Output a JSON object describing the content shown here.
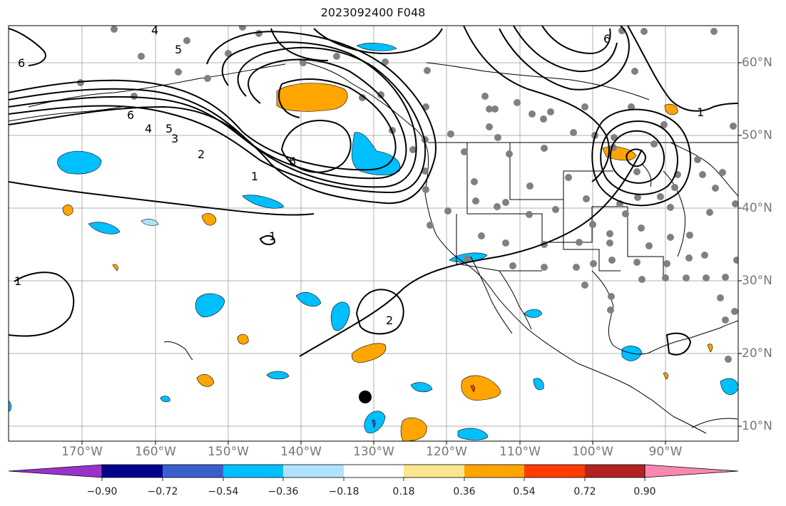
{
  "title": "2023092400 F048",
  "lon_labels": [
    "170°W",
    "160°W",
    "150°W",
    "140°W",
    "130°W",
    "120°W",
    "110°W",
    "100°W",
    "90°W"
  ],
  "lat_labels": [
    "60°N",
    "50°N",
    "40°N",
    "30°N",
    "20°N",
    "10°N"
  ],
  "colorbar": {
    "tick_labels": [
      "−0.90",
      "−0.72",
      "−0.54",
      "−0.36",
      "−0.18",
      "0.18",
      "0.36",
      "0.54",
      "0.72",
      "0.90"
    ],
    "colors": [
      "#9932cc",
      "#00008b",
      "#3a5fcd",
      "#00bfff",
      "#b0e2ff",
      "#ffffff",
      "#fbe790",
      "#ffa500",
      "#ff3c00",
      "#b22222",
      "#f987b0"
    ]
  },
  "contour_labels": [
    "6",
    "5",
    "4",
    "3",
    "2",
    "1",
    "1",
    "2",
    "6",
    "1",
    "6",
    "5",
    "4",
    "6",
    "1"
  ],
  "colors": {
    "land_fill": "#ffffff",
    "ocean": "#ffffff",
    "station": "#808080",
    "grid": "#b0b0b0"
  }
}
